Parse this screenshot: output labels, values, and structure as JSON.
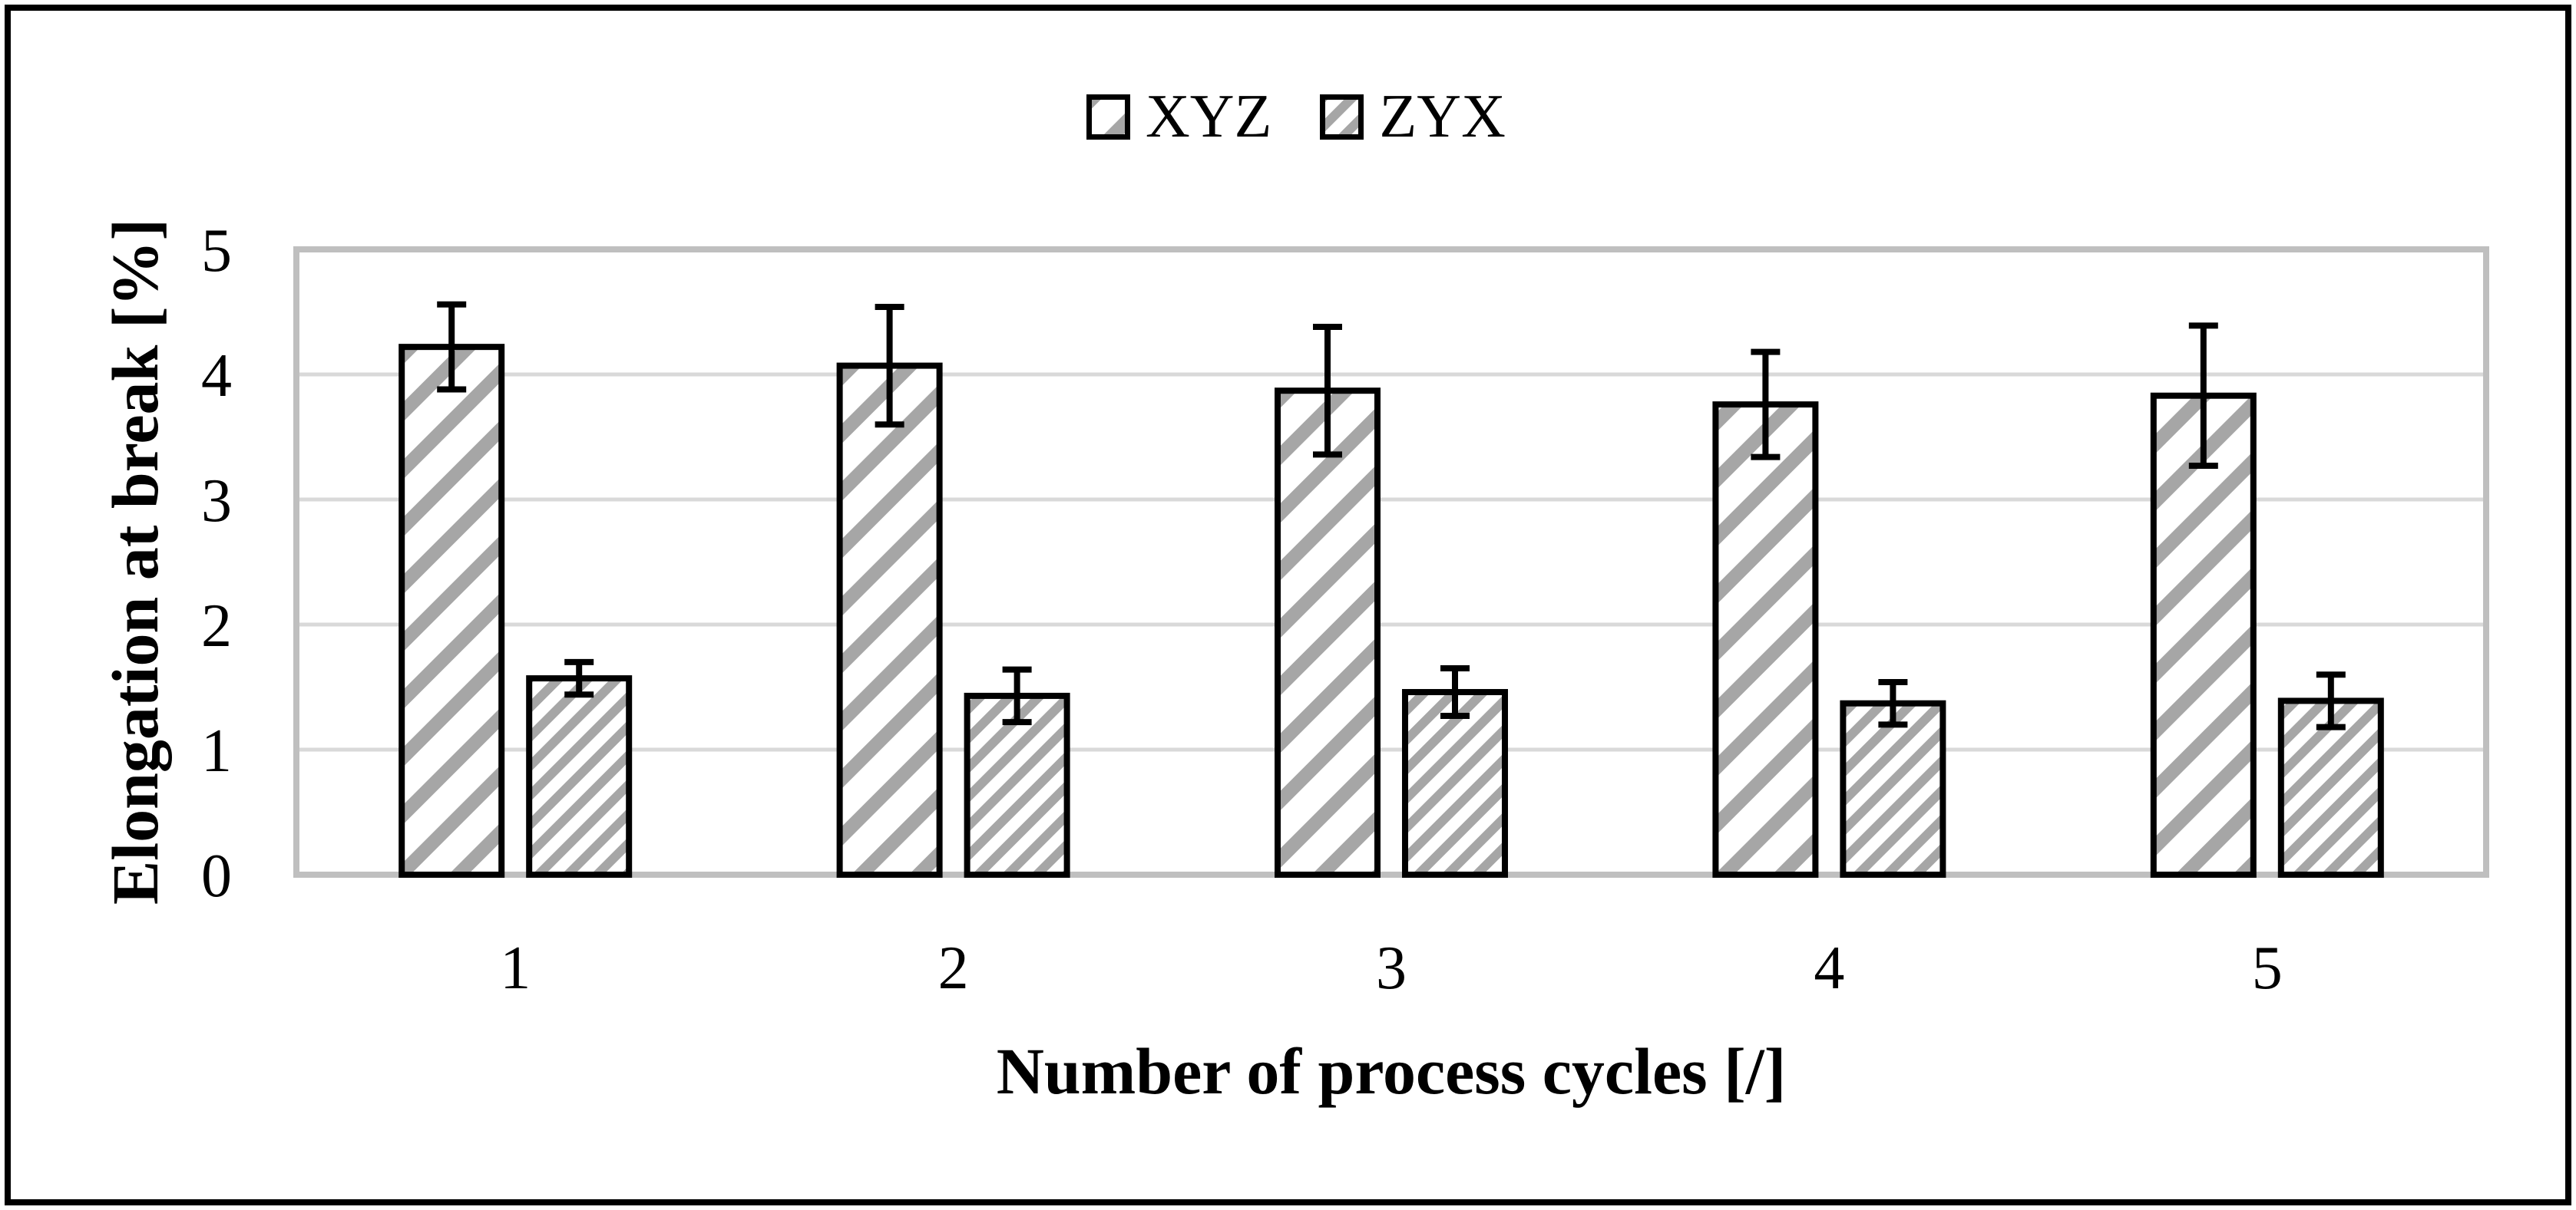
{
  "legend": {
    "items": [
      {
        "label": "XYZ",
        "swatch": "wide-diagonal-hatch"
      },
      {
        "label": "ZYX",
        "swatch": "dense-diagonal-hatch"
      }
    ]
  },
  "chart_data": {
    "type": "bar",
    "title": "",
    "categories": [
      "1",
      "2",
      "3",
      "4",
      "5"
    ],
    "series": [
      {
        "name": "XYZ",
        "values": [
          4.22,
          4.07,
          3.87,
          3.76,
          3.83
        ],
        "errors": [
          0.34,
          0.47,
          0.51,
          0.42,
          0.56
        ],
        "hatch": "wide-diagonal"
      },
      {
        "name": "ZYX",
        "values": [
          1.57,
          1.43,
          1.46,
          1.37,
          1.39
        ],
        "errors": [
          0.13,
          0.21,
          0.19,
          0.17,
          0.21
        ],
        "hatch": "dense-diagonal"
      }
    ],
    "xlabel": "Number of process cycles [/]",
    "ylabel": "Elongation at break [%]",
    "ylim": [
      0,
      5
    ],
    "yticks": [
      0,
      1,
      2,
      3,
      4,
      5
    ],
    "grid": true,
    "legend_position": "top-center",
    "error_bars": true,
    "colors": {
      "hatch": "#a6a6a6",
      "bar_border": "#000000",
      "gridline": "#d9d9d9",
      "frame": "#bfbfbf",
      "error": "#000000",
      "text": "#000000",
      "background": "#ffffff"
    }
  }
}
